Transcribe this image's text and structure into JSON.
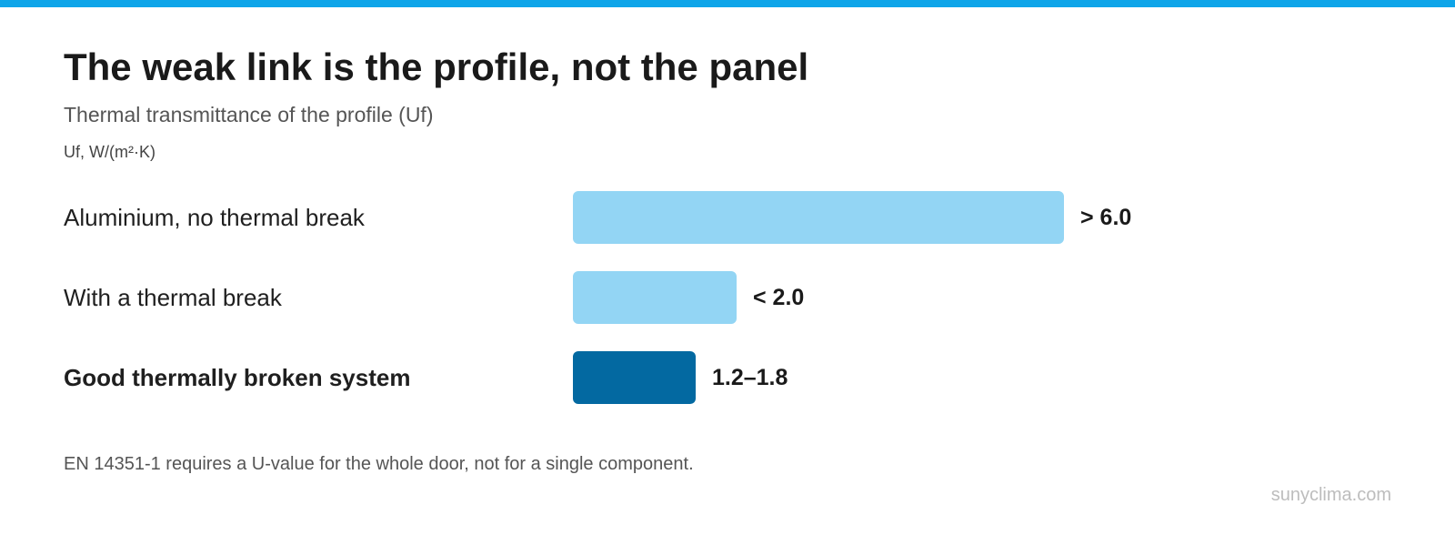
{
  "colors": {
    "accent": "#0ea5e9",
    "bar_light": "#93d5f4",
    "bar_highlight": "#0369a1"
  },
  "chart_data": {
    "type": "bar",
    "orientation": "horizontal",
    "title": "The weak link is the profile, not the panel",
    "subtitle": "Thermal transmittance of the profile (Uf)",
    "unit_label": "Uf, W/(m²·K)",
    "categories": [
      "Aluminium, no thermal break",
      "With a thermal break",
      "Good thermally broken system"
    ],
    "values": [
      6.0,
      2.0,
      1.5
    ],
    "value_labels": [
      "> 6.0",
      "< 2.0",
      "1.2–1.8"
    ],
    "highlight": [
      false,
      false,
      true
    ],
    "xlim": [
      0,
      6.0
    ],
    "grid": false,
    "footnote": "EN 14351-1 requires a U-value for the whole door, not for a single component.",
    "source": "sunyclima.com"
  }
}
